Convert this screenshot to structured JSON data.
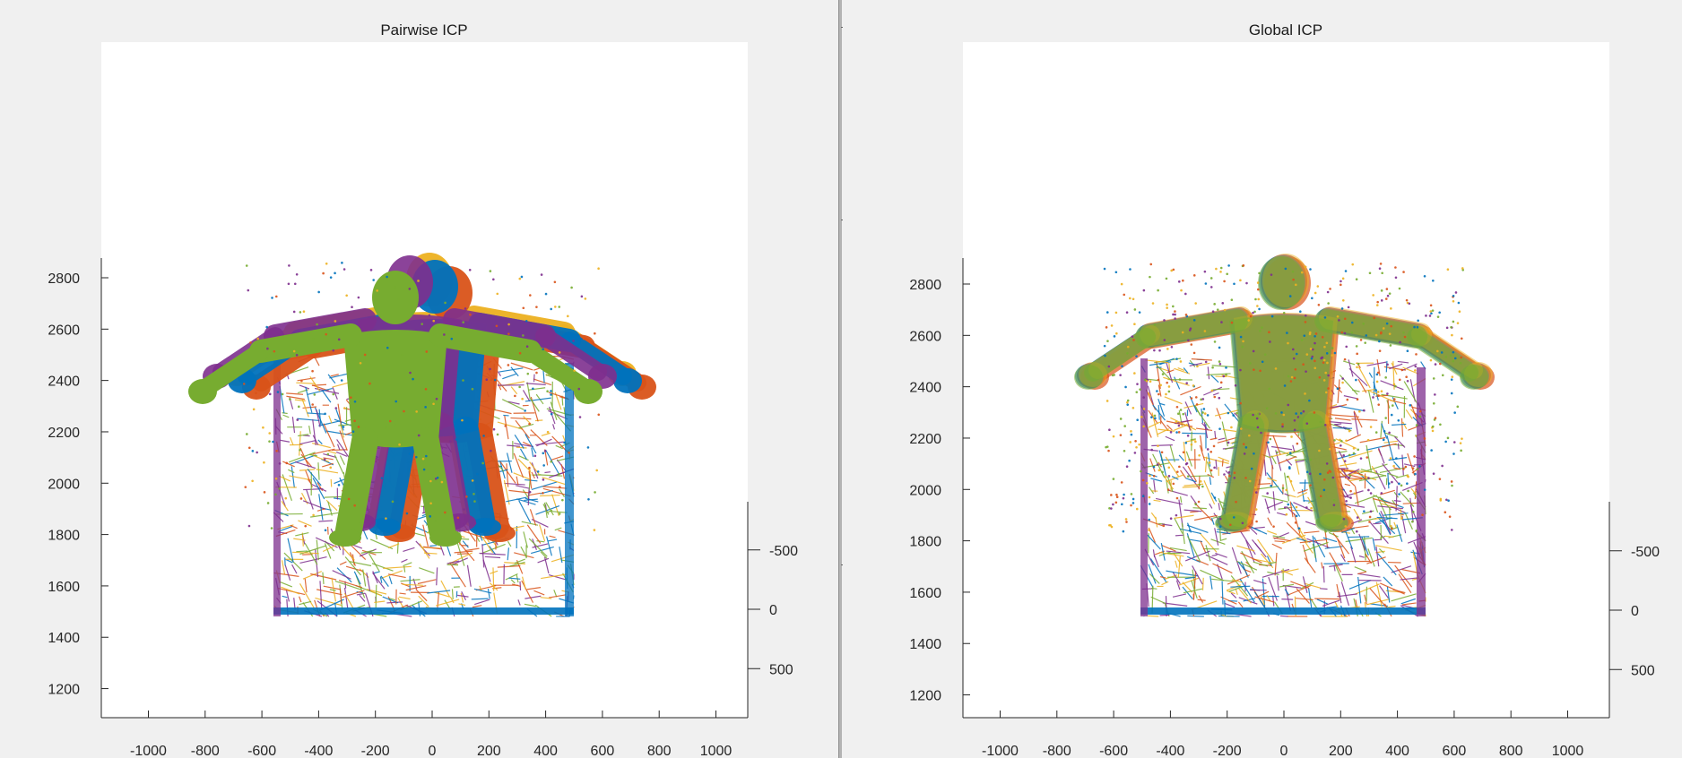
{
  "window": {
    "divider": true
  },
  "chart_data": [
    {
      "type": "scatter",
      "title": "Pairwise ICP",
      "projection": "3d-oblique",
      "x_axis": {
        "ticks": [
          -1000,
          -800,
          -600,
          -400,
          -200,
          0,
          200,
          400,
          600,
          800,
          1000
        ]
      },
      "y_axis": {
        "ticks": [
          -500,
          0,
          500
        ]
      },
      "z_axis": {
        "ticks": [
          1200,
          1400,
          1600,
          1800,
          2000,
          2200,
          2400,
          2600,
          2800
        ]
      },
      "series": [
        {
          "color": "#0072bd",
          "values": []
        },
        {
          "color": "#d95319",
          "values": []
        },
        {
          "color": "#edb120",
          "values": []
        },
        {
          "color": "#7e2f8e",
          "values": []
        },
        {
          "color": "#77ac30",
          "values": []
        }
      ],
      "grid": false
    },
    {
      "type": "scatter",
      "title": "Global ICP",
      "projection": "3d-oblique",
      "x_axis": {
        "ticks": [
          -1000,
          -800,
          -600,
          -400,
          -200,
          0,
          200,
          400,
          600,
          800,
          1000
        ]
      },
      "y_axis": {
        "ticks": [
          -500,
          0,
          500
        ]
      },
      "z_axis": {
        "ticks": [
          1200,
          1400,
          1600,
          1800,
          2000,
          2200,
          2400,
          2600,
          2800
        ]
      },
      "series": [
        {
          "color": "#0072bd",
          "values": []
        },
        {
          "color": "#d95319",
          "values": []
        },
        {
          "color": "#edb120",
          "values": []
        },
        {
          "color": "#7e2f8e",
          "values": []
        },
        {
          "color": "#77ac30",
          "values": []
        }
      ],
      "grid": false
    }
  ]
}
